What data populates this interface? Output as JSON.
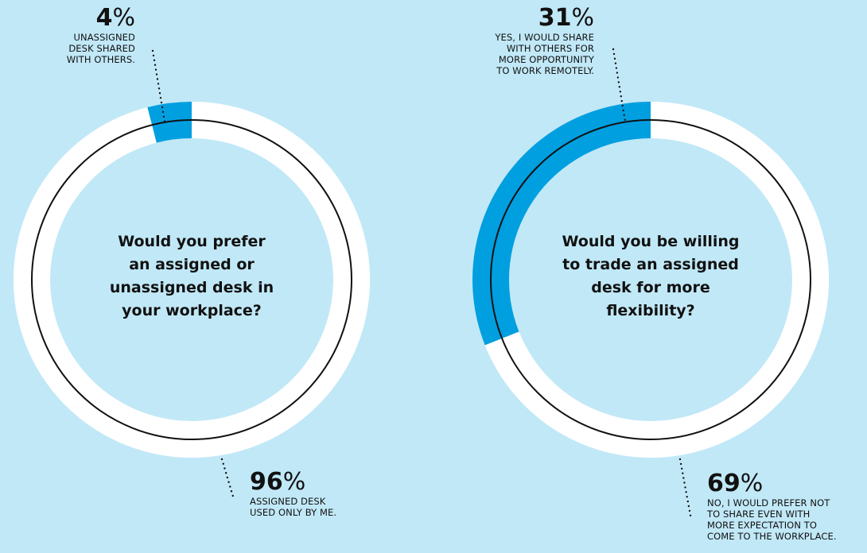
{
  "colors": {
    "background": "#c1e8f7",
    "ring": "#ffffff",
    "highlight": "#009fe0",
    "outline": "#111111"
  },
  "chart_data": [
    {
      "type": "pie",
      "style": "donut",
      "question": "Would you prefer\nan assigned or\nunassigned desk in\nyour workplace?",
      "slices": [
        {
          "value": 4,
          "percent_label": "4",
          "label": "UNASSIGNED\nDESK SHARED\nWITH OTHERS.",
          "color": "#009fe0"
        },
        {
          "value": 96,
          "percent_label": "96",
          "label": "ASSIGNED DESK\nUSED ONLY BY ME.",
          "color": "#ffffff"
        }
      ]
    },
    {
      "type": "pie",
      "style": "donut",
      "question": "Would you be willing\nto trade an assigned\ndesk for more\nflexibility?",
      "slices": [
        {
          "value": 31,
          "percent_label": "31",
          "label": "YES, I WOULD SHARE\nWITH OTHERS FOR\nMORE OPPORTUNITY\nTO WORK REMOTELY.",
          "color": "#009fe0"
        },
        {
          "value": 69,
          "percent_label": "69",
          "label": "NO, I WOULD PREFER NOT\nTO SHARE EVEN WITH\nMORE EXPECTATION TO\nCOME TO THE WORKPLACE.",
          "color": "#ffffff"
        }
      ]
    }
  ]
}
